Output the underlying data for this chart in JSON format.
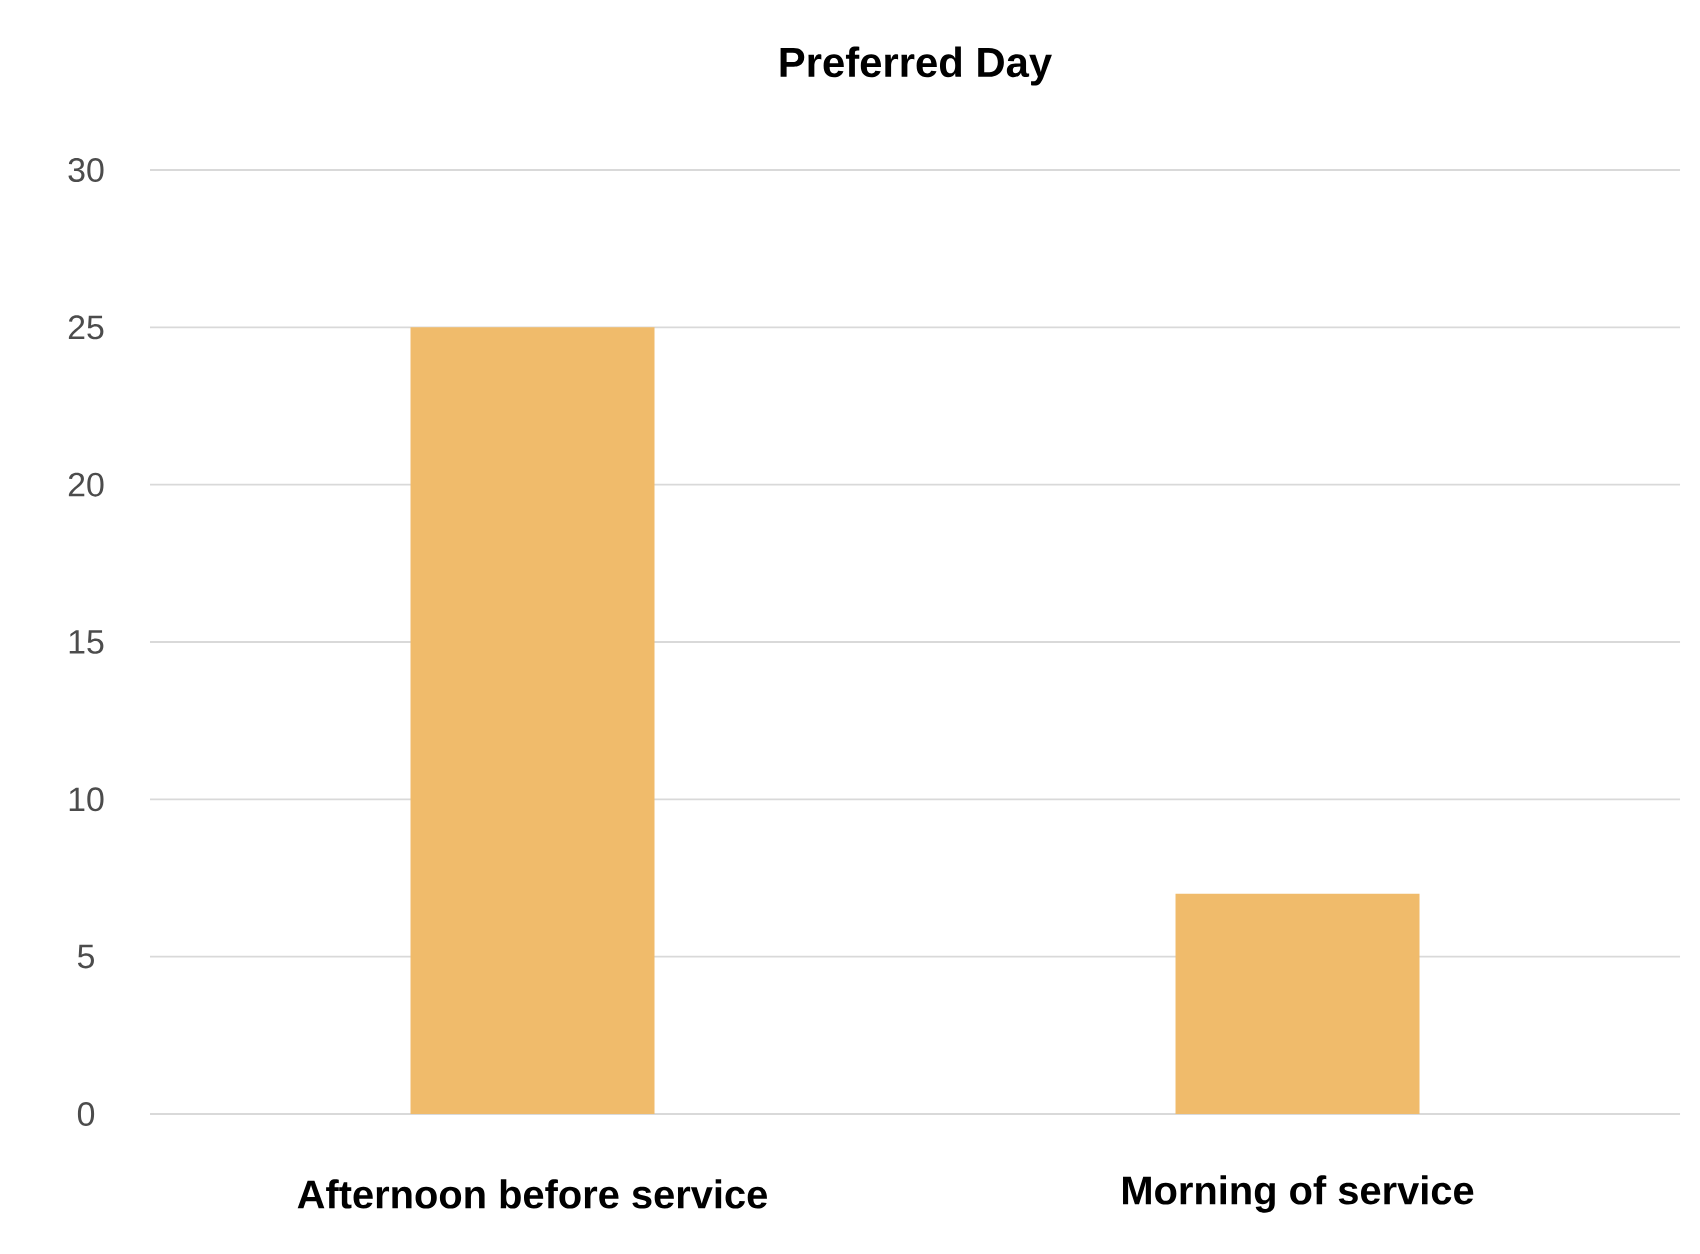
{
  "chart_data": {
    "type": "bar",
    "title": "Preferred Day",
    "categories": [
      "Afternoon before service",
      "Morning of service"
    ],
    "values": [
      25,
      7
    ],
    "color": "#f0bb6b",
    "ylim": [
      0,
      30
    ],
    "yticks": [
      0,
      5,
      10,
      15,
      20,
      25,
      30
    ],
    "grid": "y"
  }
}
